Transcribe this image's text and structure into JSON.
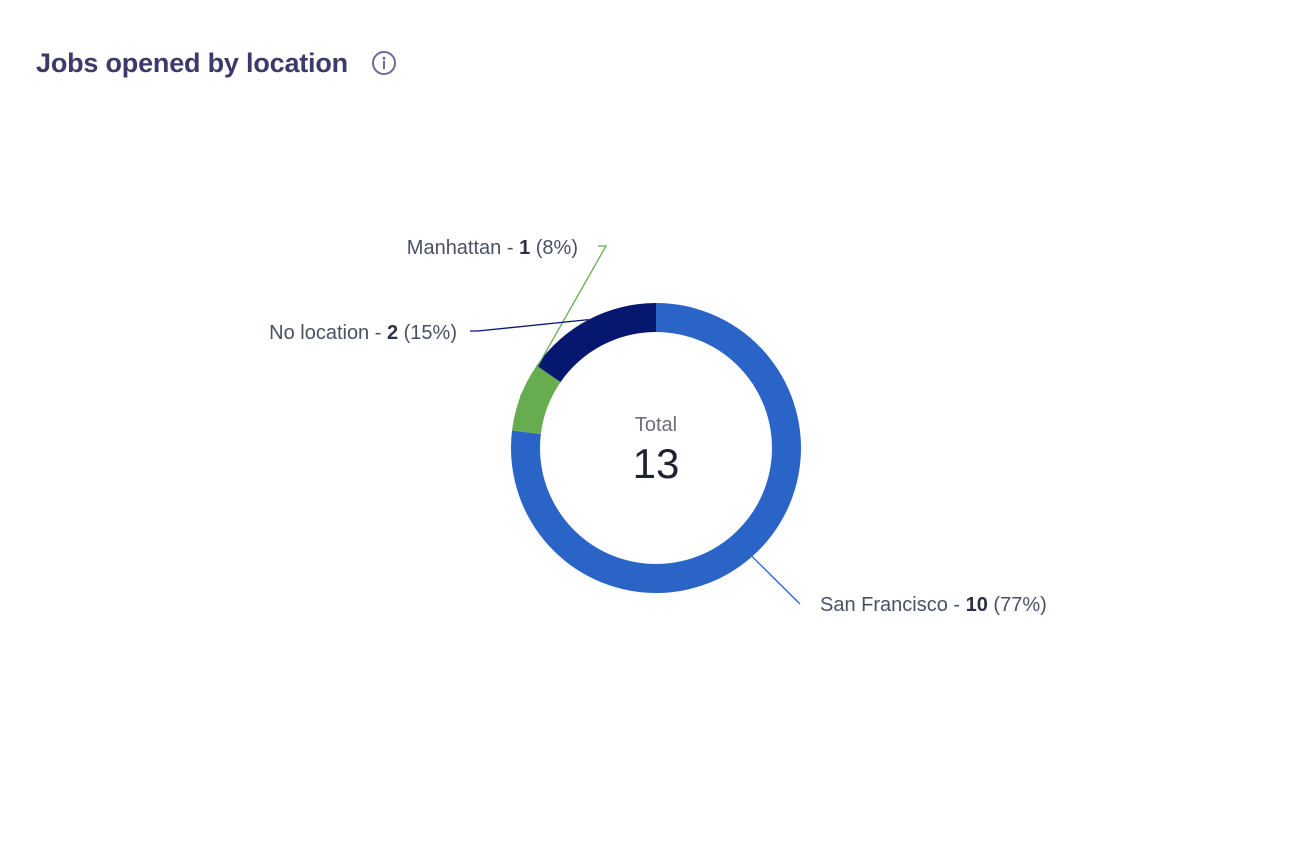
{
  "header": {
    "title": "Jobs opened by location",
    "info_icon": "info-circle-icon"
  },
  "chart_data": {
    "type": "pie",
    "title": "Jobs opened by location",
    "center_label": "Total",
    "total": 13,
    "slices": [
      {
        "name": "San Francisco",
        "value": 10,
        "percent": "77%",
        "color": "#2a64c6"
      },
      {
        "name": "Manhattan",
        "value": 1,
        "percent": "8%",
        "color": "#67ad4f"
      },
      {
        "name": "No location",
        "value": 2,
        "percent": "15%",
        "color": "#061770"
      }
    ],
    "label_separator": " - ",
    "colors": {
      "title": "#3d3a6b",
      "label": "#4a5066",
      "center_label": "#6b6f7d",
      "center_value": "#1f2230"
    }
  }
}
